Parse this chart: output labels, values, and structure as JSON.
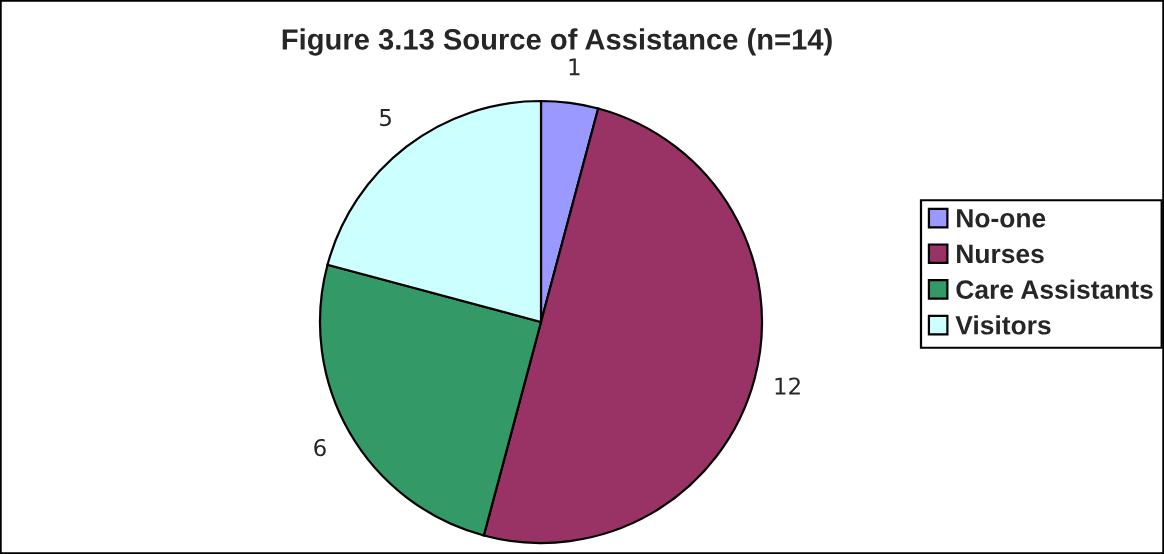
{
  "chart_data": {
    "type": "pie",
    "title": "Figure 3.13 Source of Assistance (n=14)",
    "categories": [
      "No-one",
      "Nurses",
      "Care Assistants",
      "Visitors"
    ],
    "values": [
      1,
      12,
      6,
      5
    ],
    "colors": [
      "#9999ff",
      "#993366",
      "#339966",
      "#ccffff"
    ],
    "data_labels": true,
    "legend": "right"
  }
}
